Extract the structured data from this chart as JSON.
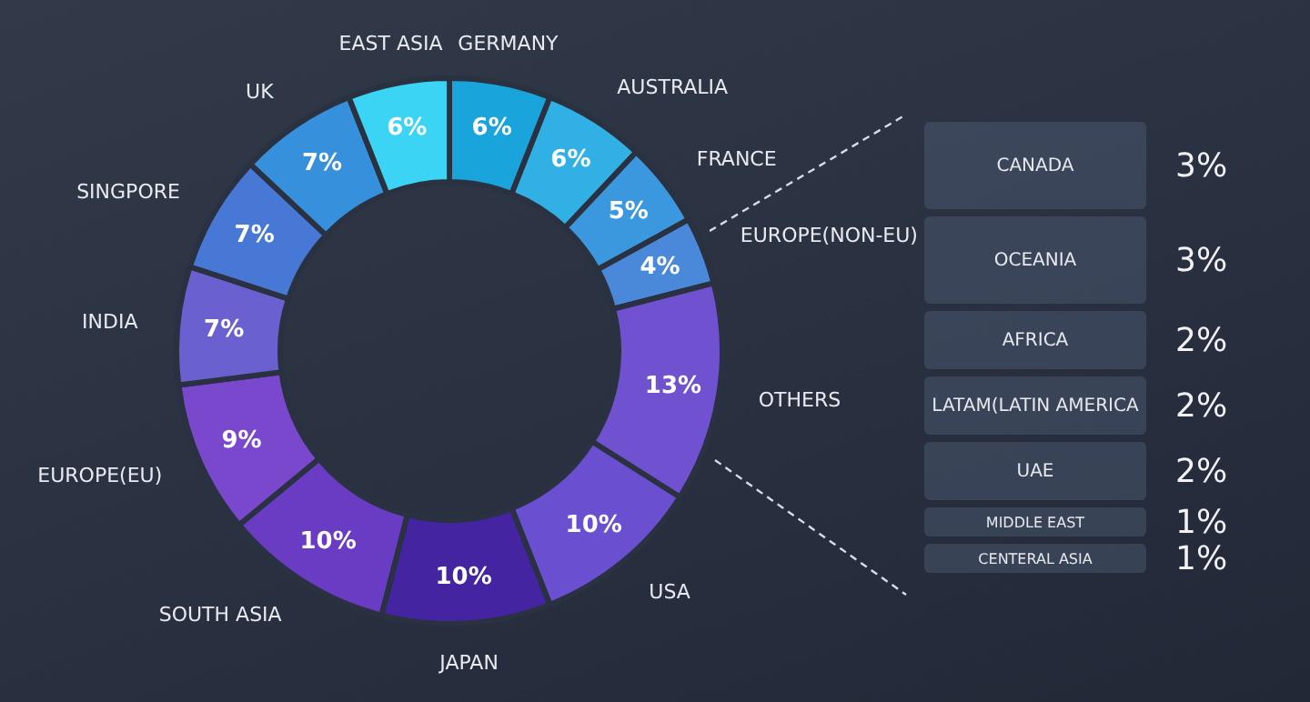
{
  "chart_data": [
    {
      "type": "donut",
      "categories": [
        "GERMANY",
        "AUSTRALIA",
        "FRANCE",
        "EUROPE(NON-EU)",
        "OTHERS",
        "USA",
        "JAPAN",
        "SOUTH ASIA",
        "EUROPE(EU)",
        "INDIA",
        "SINGPORE",
        "UK",
        "EAST ASIA"
      ],
      "values": [
        6,
        6,
        5,
        4,
        13,
        10,
        10,
        10,
        9,
        7,
        7,
        7,
        6
      ],
      "value_labels": [
        "6%",
        "6%",
        "5%",
        "4%",
        "13%",
        "10%",
        "10%",
        "10%",
        "9%",
        "7%",
        "7%",
        "7%",
        "6%"
      ],
      "colors": [
        "#1aa4dc",
        "#31b0e6",
        "#3b98de",
        "#4a88da",
        "#7052d0",
        "#6a50d0",
        "#4424a0",
        "#6a3cc4",
        "#7a48cc",
        "#6a60d0",
        "#4878d6",
        "#3690dc",
        "#3cd4f4"
      ]
    },
    {
      "type": "other",
      "categories": [
        "CANADA",
        "OCEANIA",
        "AFRICA",
        "LATAM(LATIN AMERICA",
        "UAE",
        "MIDDLE EAST",
        "CENTERAL ASIA"
      ],
      "values": [
        3,
        3,
        2,
        2,
        2,
        1,
        1
      ],
      "value_labels": [
        "3%",
        "3%",
        "2%",
        "2%",
        "2%",
        "1%",
        "1%"
      ]
    }
  ]
}
